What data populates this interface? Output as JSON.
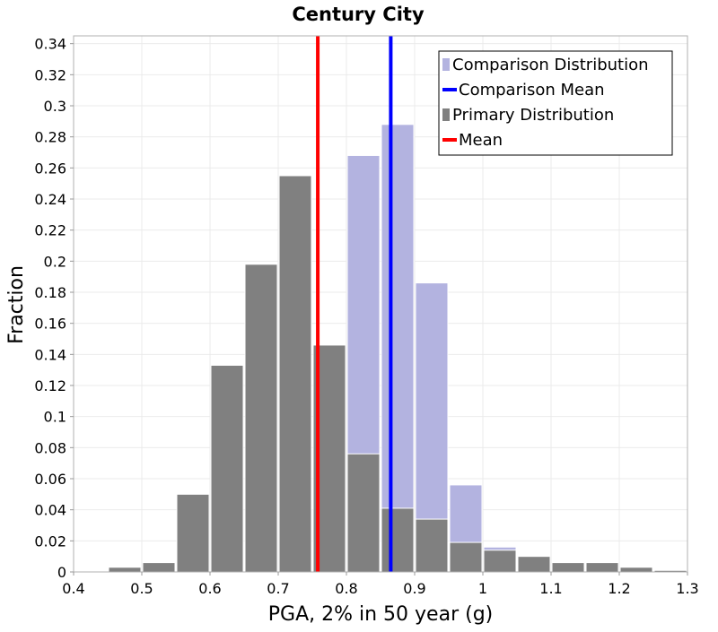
{
  "chart_data": {
    "type": "bar",
    "title": "Century City",
    "xlabel": "PGA, 2% in 50 year (g)",
    "ylabel": "Fraction",
    "xlim": [
      0.4,
      1.3
    ],
    "ylim": [
      0,
      0.345
    ],
    "x_ticks": [
      "0.4",
      "0.5",
      "0.6",
      "0.7",
      "0.8",
      "0.9",
      "1",
      "1.1",
      "1.2",
      "1.3"
    ],
    "y_ticks": [
      "0",
      "0.02",
      "0.04",
      "0.06",
      "0.08",
      "0.1",
      "0.12",
      "0.14",
      "0.16",
      "0.18",
      "0.2",
      "0.22",
      "0.24",
      "0.26",
      "0.28",
      "0.3",
      "0.32",
      "0.34"
    ],
    "grid": true,
    "legend_position": "top-right",
    "bin_width": 0.05,
    "series": [
      {
        "name": "Comparison Distribution",
        "kind": "bar",
        "color": "#b3b3e0",
        "x": [
          0.825,
          0.875,
          0.925,
          0.975,
          1.025
        ],
        "values": [
          0.268,
          0.288,
          0.186,
          0.056,
          0.016
        ]
      },
      {
        "name": "Comparison Mean",
        "kind": "vline",
        "color": "#0000ff",
        "x": 0.865
      },
      {
        "name": "Primary Distribution",
        "kind": "bar",
        "color": "#808080",
        "x": [
          0.475,
          0.525,
          0.575,
          0.625,
          0.675,
          0.725,
          0.775,
          0.825,
          0.875,
          0.925,
          0.975,
          1.025,
          1.075,
          1.125,
          1.175,
          1.225,
          1.275
        ],
        "values": [
          0.003,
          0.006,
          0.05,
          0.133,
          0.198,
          0.255,
          0.146,
          0.076,
          0.041,
          0.034,
          0.019,
          0.014,
          0.01,
          0.006,
          0.006,
          0.003,
          0.001
        ]
      },
      {
        "name": "Mean",
        "kind": "vline",
        "color": "#ff0000",
        "x": 0.758
      }
    ]
  }
}
